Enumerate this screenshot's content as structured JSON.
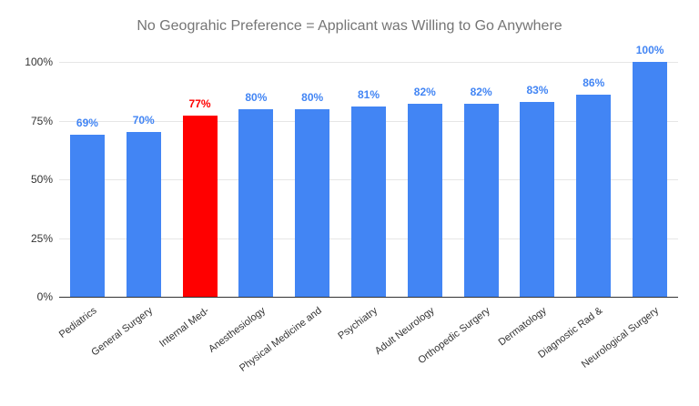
{
  "chart_data": {
    "type": "bar",
    "title": "No Geograhic Preference = Applicant was Willing to Go Anywhere",
    "categories": [
      "Pediatrics",
      "General Surgery",
      "Internal Med-",
      "Anesthesiology",
      "Physical Medicine and",
      "Psychiatry",
      "Adult Neurology",
      "Orthopedic Surgery",
      "Dermatology",
      "Diagnostic Rad &",
      "Neurological Surgery"
    ],
    "values": [
      69,
      70,
      77,
      80,
      80,
      81,
      82,
      82,
      83,
      86,
      100
    ],
    "data_labels": [
      "69%",
      "70%",
      "77%",
      "80%",
      "80%",
      "81%",
      "82%",
      "82%",
      "83%",
      "86%",
      "100%"
    ],
    "xlabel": "",
    "ylabel": "",
    "ylim": [
      0,
      100
    ],
    "yticks": [
      {
        "value": 0,
        "label": "0%"
      },
      {
        "value": 25,
        "label": "25%"
      },
      {
        "value": 50,
        "label": "50%"
      },
      {
        "value": 75,
        "label": "75%"
      },
      {
        "value": 100,
        "label": "100%"
      }
    ],
    "grid": true,
    "legend": "none",
    "highlight_index": 2,
    "colors": {
      "bar": "#4285f4",
      "highlight_bar": "#ff0000",
      "value_label": "#4285f4",
      "highlight_value_label": "#ff0000",
      "title": "#757575",
      "axis_text": "#333333",
      "gridline": "#e6e6e6",
      "baseline": "#333333",
      "background": "#ffffff"
    }
  }
}
